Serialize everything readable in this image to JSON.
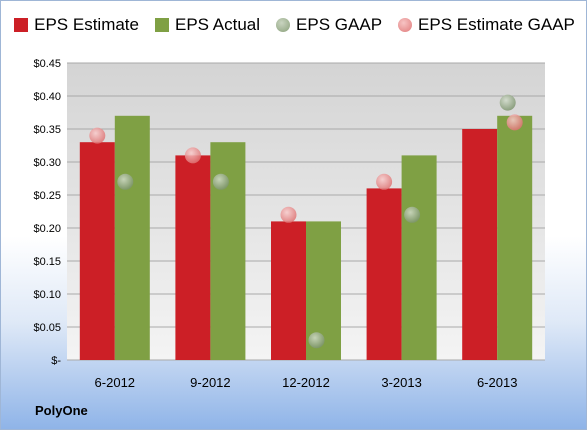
{
  "company": "PolyOne",
  "chart_data": {
    "type": "bar",
    "categories": [
      "6-2012",
      "9-2012",
      "12-2012",
      "3-2013",
      "6-2013"
    ],
    "series": [
      {
        "name": "EPS Estimate",
        "kind": "bar",
        "color": "#cc1f26",
        "values": [
          0.33,
          0.31,
          0.21,
          0.26,
          0.35
        ]
      },
      {
        "name": "EPS Actual",
        "kind": "bar",
        "color": "#7fa044",
        "values": [
          0.37,
          0.33,
          0.21,
          0.31,
          0.37
        ]
      },
      {
        "name": "EPS GAAP",
        "kind": "marker",
        "color": "#8aa07a",
        "values": [
          0.27,
          0.27,
          0.03,
          0.22,
          0.39
        ]
      },
      {
        "name": "EPS Estimate GAAP",
        "kind": "marker",
        "color": "#e88a8a",
        "values": [
          0.34,
          0.31,
          0.22,
          0.27,
          0.36
        ]
      }
    ],
    "y_ticks": [
      "$-",
      "$0.05",
      "$0.10",
      "$0.15",
      "$0.20",
      "$0.25",
      "$0.30",
      "$0.35",
      "$0.40",
      "$0.45"
    ],
    "ylim": [
      0,
      0.45
    ],
    "grid": true,
    "legend_position": "top"
  }
}
